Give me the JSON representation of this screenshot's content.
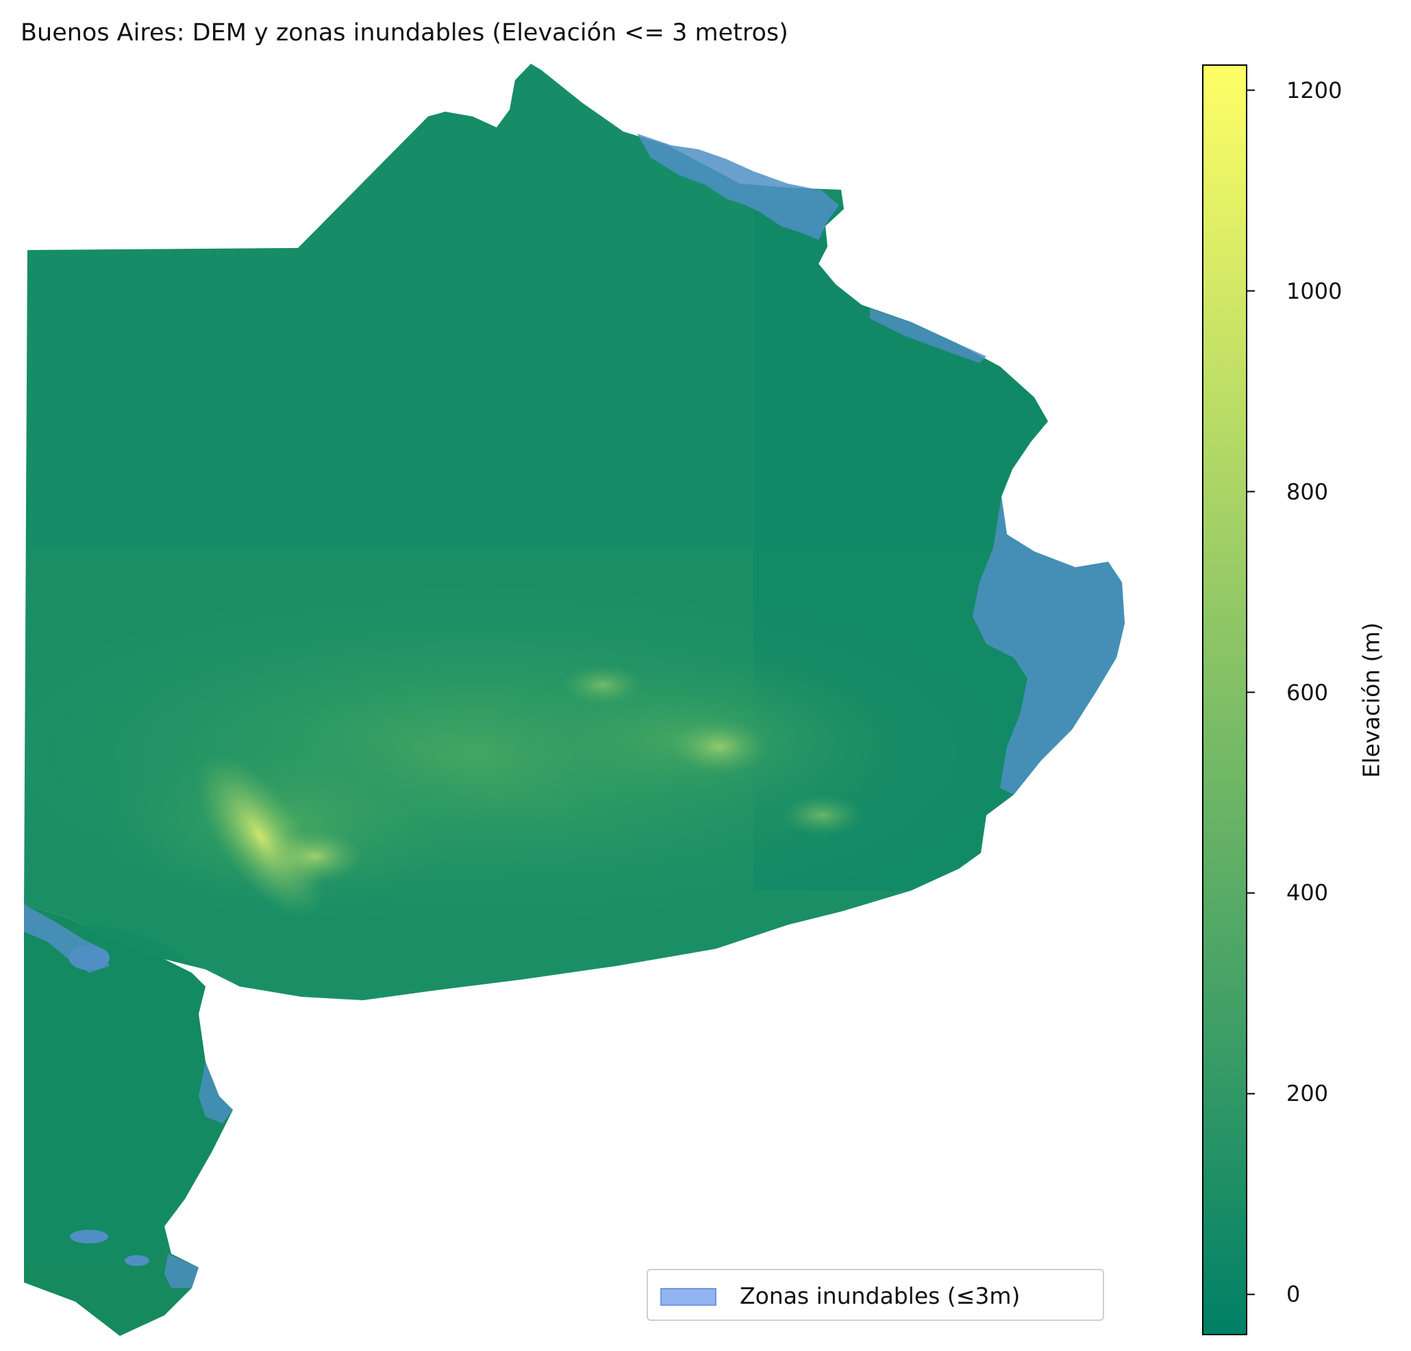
{
  "title": "Buenos Aires: DEM y zonas inundables (Elevación <= 3 metros)",
  "legend": {
    "label": "Zonas inundables (≤3m)",
    "swatch_color": "#93b4f0"
  },
  "colorbar": {
    "label": "Elevación (m)",
    "min": -40,
    "max": 1225,
    "ticks": [
      {
        "value": 0,
        "label": "0"
      },
      {
        "value": 200,
        "label": "200"
      },
      {
        "value": 400,
        "label": "400"
      },
      {
        "value": 600,
        "label": "600"
      },
      {
        "value": 800,
        "label": "800"
      },
      {
        "value": 1000,
        "label": "1000"
      },
      {
        "value": 1200,
        "label": "1200"
      }
    ],
    "colormap": "summer",
    "colormap_low": "#008066",
    "colormap_high": "#ffff66"
  },
  "colors": {
    "lowland": "#0e8a68",
    "plains": "#1f9163",
    "hills": "#3a9f60",
    "ridge": "#c9e36a",
    "flood_zone": "#4f8fc4"
  }
}
